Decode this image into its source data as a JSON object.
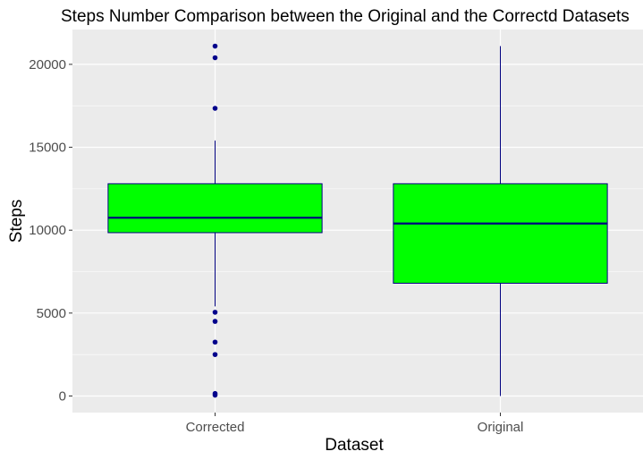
{
  "chart_data": {
    "type": "boxplot",
    "title": "Steps Number Comparison between the Original and the Correctd Datasets",
    "xlabel": "Dataset",
    "ylabel": "Steps",
    "ylim": [
      -1000,
      22100
    ],
    "yticks": [
      0,
      5000,
      10000,
      15000,
      20000
    ],
    "grid": true,
    "colors": {
      "panel": "#ebebeb",
      "grid": "#ffffff",
      "box_fill": "#00ff00",
      "box_line": "#000080",
      "outlier": "#00008b"
    },
    "categories": [
      "Corrected",
      "Original"
    ],
    "boxes": [
      {
        "category": "Corrected",
        "whisker_low": 5400,
        "q1": 9850,
        "median": 10750,
        "q3": 12800,
        "whisker_high": 15400,
        "outliers": [
          21100,
          20400,
          17350,
          5050,
          4500,
          3250,
          2500,
          150,
          50
        ]
      },
      {
        "category": "Original",
        "whisker_low": 0,
        "q1": 6800,
        "median": 10400,
        "q3": 12800,
        "whisker_high": 21100,
        "outliers": []
      }
    ]
  }
}
